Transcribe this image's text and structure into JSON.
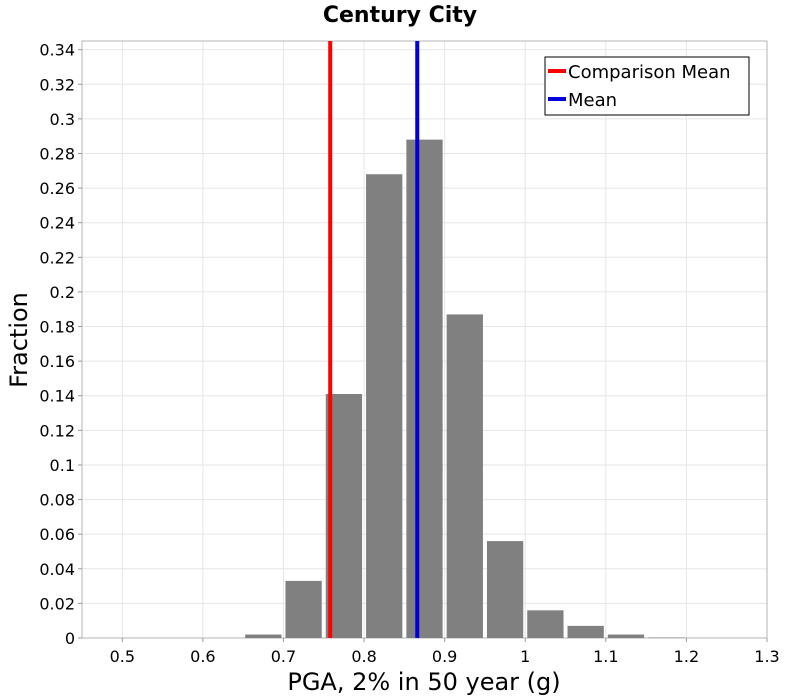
{
  "chart_data": {
    "type": "bar",
    "title": "Century City",
    "xlabel": "PGA, 2% in 50 year (g)",
    "ylabel": "Fraction",
    "xlim": [
      0.45,
      1.3
    ],
    "ylim": [
      0,
      0.345
    ],
    "xticks": [
      "0.5",
      "0.6",
      "0.7",
      "0.8",
      "0.9",
      "1",
      "1.1",
      "1.2",
      "1.3"
    ],
    "yticks": [
      "0",
      "0.02",
      "0.04",
      "0.06",
      "0.08",
      "0.1",
      "0.12",
      "0.14",
      "0.16",
      "0.18",
      "0.2",
      "0.22",
      "0.24",
      "0.26",
      "0.28",
      "0.3",
      "0.32",
      "0.34"
    ],
    "bin_width": 0.05,
    "bar_color": "#808080",
    "bins": [
      {
        "x": 0.675,
        "value": 0.002
      },
      {
        "x": 0.725,
        "value": 0.033
      },
      {
        "x": 0.775,
        "value": 0.141
      },
      {
        "x": 0.825,
        "value": 0.268
      },
      {
        "x": 0.875,
        "value": 0.288
      },
      {
        "x": 0.925,
        "value": 0.187
      },
      {
        "x": 0.975,
        "value": 0.056
      },
      {
        "x": 1.025,
        "value": 0.016
      },
      {
        "x": 1.075,
        "value": 0.007
      },
      {
        "x": 1.125,
        "value": 0.002
      },
      {
        "x": 1.175,
        "value": 0.0003
      }
    ],
    "vlines": [
      {
        "name": "Comparison Mean",
        "x": 0.758,
        "color": "#ff0000"
      },
      {
        "name": "Mean",
        "x": 0.866,
        "color": "#0000dd"
      }
    ],
    "legend_position": "top-right",
    "grid": true
  }
}
